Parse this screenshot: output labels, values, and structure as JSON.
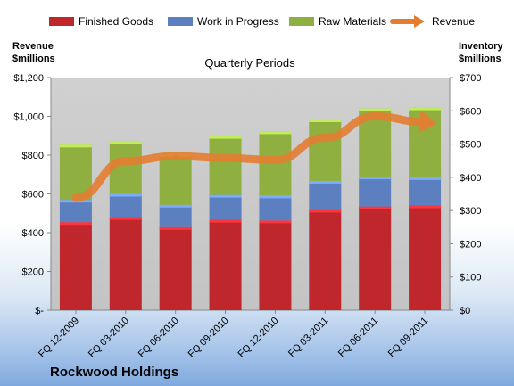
{
  "chart_data": {
    "type": "bar",
    "stacked": true,
    "title": "Quarterly Periods",
    "categories": [
      "FQ 12-2009",
      "FQ 03-2010",
      "FQ 06-2010",
      "FQ 09-2010",
      "FQ 12-2010",
      "FQ 03-2011",
      "FQ 06-2011",
      "FQ 09-2011"
    ],
    "series": [
      {
        "name": "Finished Goods",
        "axis": "right",
        "color": "#c0272d",
        "values": [
          265,
          280,
          250,
          272,
          270,
          302,
          312,
          315
        ]
      },
      {
        "name": "Work in Progress",
        "axis": "right",
        "color": "#5b7fbf",
        "values": [
          67,
          70,
          67,
          75,
          75,
          87,
          90,
          85
        ]
      },
      {
        "name": "Raw Materials",
        "axis": "right",
        "color": "#8fb041",
        "values": [
          166,
          158,
          153,
          177,
          193,
          185,
          205,
          210
        ]
      },
      {
        "name": "Revenue",
        "axis": "left",
        "type": "line",
        "color": "#e47d32",
        "values": [
          580,
          770,
          795,
          785,
          775,
          890,
          1000,
          970
        ]
      }
    ],
    "left_axis": {
      "title_lines": [
        "Revenue",
        "$millions"
      ],
      "ylim": [
        0,
        1200
      ],
      "ticks": [
        "$-",
        "$200",
        "$400",
        "$600",
        "$800",
        "$1,000",
        "$1,200"
      ]
    },
    "right_axis": {
      "title_lines": [
        "Inventory",
        "$millions"
      ],
      "ylim": [
        0,
        700
      ],
      "ticks": [
        "$0",
        "$100",
        "$200",
        "$300",
        "$400",
        "$500",
        "$600",
        "$700"
      ]
    },
    "grid": false,
    "legend": "top"
  },
  "company": "Rockwood Holdings"
}
